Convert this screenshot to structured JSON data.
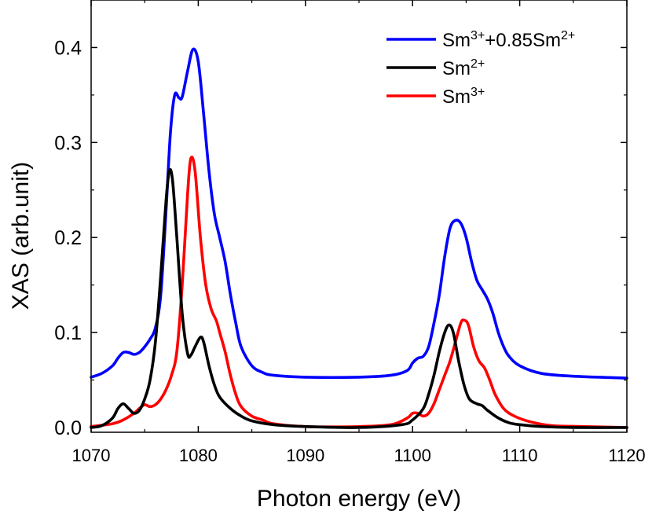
{
  "chart_data": {
    "type": "line",
    "xlabel": "Photon energy (eV)",
    "ylabel": "XAS (arb.unit)",
    "xlim": [
      1070,
      1120
    ],
    "ylim": [
      -0.005,
      0.45
    ],
    "xticks": [
      1070,
      1080,
      1090,
      1100,
      1110,
      1120
    ],
    "xtick_labels": [
      "1070",
      "1080",
      "1090",
      "1100",
      "1110",
      "1120"
    ],
    "yticks": [
      0.0,
      0.1,
      0.2,
      0.3,
      0.4
    ],
    "ytick_labels": [
      "0.0",
      "0.1",
      "0.2",
      "0.3",
      "0.4"
    ],
    "grid": false,
    "legend_position": "top-right",
    "series": [
      {
        "name": "Sm3++0.85Sm2+",
        "legend": {
          "base1": "Sm",
          "sup1": "3+",
          "mid": "+0.85Sm",
          "sup2": "2+"
        },
        "color": "#0000ff",
        "points": [
          [
            1070,
            0.053
          ],
          [
            1071,
            0.057
          ],
          [
            1072,
            0.065
          ],
          [
            1072.5,
            0.073
          ],
          [
            1073,
            0.079
          ],
          [
            1073.5,
            0.079
          ],
          [
            1074,
            0.077
          ],
          [
            1074.5,
            0.079
          ],
          [
            1075,
            0.085
          ],
          [
            1075.5,
            0.093
          ],
          [
            1076,
            0.105
          ],
          [
            1076.5,
            0.14
          ],
          [
            1077,
            0.23
          ],
          [
            1077.4,
            0.31
          ],
          [
            1077.8,
            0.35
          ],
          [
            1078.2,
            0.347
          ],
          [
            1078.5,
            0.348
          ],
          [
            1079,
            0.375
          ],
          [
            1079.5,
            0.398
          ],
          [
            1080,
            0.385
          ],
          [
            1080.5,
            0.33
          ],
          [
            1081,
            0.27
          ],
          [
            1081.5,
            0.225
          ],
          [
            1082,
            0.2
          ],
          [
            1082.5,
            0.175
          ],
          [
            1083,
            0.14
          ],
          [
            1083.5,
            0.11
          ],
          [
            1084,
            0.085
          ],
          [
            1085,
            0.065
          ],
          [
            1086,
            0.058
          ],
          [
            1087,
            0.055
          ],
          [
            1090,
            0.053
          ],
          [
            1095,
            0.053
          ],
          [
            1098,
            0.055
          ],
          [
            1099.5,
            0.06
          ],
          [
            1100,
            0.068
          ],
          [
            1100.5,
            0.073
          ],
          [
            1101,
            0.075
          ],
          [
            1101.5,
            0.085
          ],
          [
            1102,
            0.11
          ],
          [
            1102.5,
            0.14
          ],
          [
            1103,
            0.18
          ],
          [
            1103.5,
            0.21
          ],
          [
            1104,
            0.218
          ],
          [
            1104.5,
            0.215
          ],
          [
            1105,
            0.2
          ],
          [
            1105.5,
            0.175
          ],
          [
            1106,
            0.155
          ],
          [
            1106.5,
            0.145
          ],
          [
            1107,
            0.135
          ],
          [
            1107.5,
            0.12
          ],
          [
            1108,
            0.1
          ],
          [
            1108.5,
            0.085
          ],
          [
            1109,
            0.075
          ],
          [
            1110,
            0.065
          ],
          [
            1112,
            0.057
          ],
          [
            1115,
            0.054
          ],
          [
            1120,
            0.052
          ]
        ]
      },
      {
        "name": "Sm2+",
        "legend": {
          "base1": "Sm",
          "sup1": "2+",
          "mid": "",
          "sup2": ""
        },
        "color": "#000000",
        "points": [
          [
            1070,
            0.0
          ],
          [
            1071,
            0.002
          ],
          [
            1072,
            0.01
          ],
          [
            1072.5,
            0.02
          ],
          [
            1073,
            0.025
          ],
          [
            1073.5,
            0.02
          ],
          [
            1074,
            0.015
          ],
          [
            1074.5,
            0.018
          ],
          [
            1075,
            0.03
          ],
          [
            1075.5,
            0.05
          ],
          [
            1076,
            0.09
          ],
          [
            1076.5,
            0.16
          ],
          [
            1077,
            0.24
          ],
          [
            1077.3,
            0.27
          ],
          [
            1077.6,
            0.26
          ],
          [
            1078,
            0.2
          ],
          [
            1078.5,
            0.12
          ],
          [
            1079,
            0.078
          ],
          [
            1079.3,
            0.076
          ],
          [
            1079.7,
            0.085
          ],
          [
            1080.2,
            0.095
          ],
          [
            1080.5,
            0.09
          ],
          [
            1081,
            0.065
          ],
          [
            1081.5,
            0.045
          ],
          [
            1082,
            0.032
          ],
          [
            1083,
            0.02
          ],
          [
            1084,
            0.012
          ],
          [
            1085,
            0.007
          ],
          [
            1087,
            0.003
          ],
          [
            1090,
            0.001
          ],
          [
            1095,
            0.0
          ],
          [
            1099,
            0.003
          ],
          [
            1100,
            0.008
          ],
          [
            1101,
            0.02
          ],
          [
            1101.5,
            0.035
          ],
          [
            1102,
            0.055
          ],
          [
            1102.5,
            0.08
          ],
          [
            1103,
            0.1
          ],
          [
            1103.4,
            0.108
          ],
          [
            1103.8,
            0.1
          ],
          [
            1104.3,
            0.07
          ],
          [
            1104.8,
            0.045
          ],
          [
            1105.3,
            0.03
          ],
          [
            1106,
            0.025
          ],
          [
            1106.5,
            0.023
          ],
          [
            1107,
            0.018
          ],
          [
            1108,
            0.01
          ],
          [
            1109,
            0.005
          ],
          [
            1110,
            0.003
          ],
          [
            1112,
            0.001
          ],
          [
            1115,
            0.0
          ],
          [
            1120,
            0.0
          ]
        ]
      },
      {
        "name": "Sm3+",
        "legend": {
          "base1": "Sm",
          "sup1": "3+",
          "mid": "",
          "sup2": ""
        },
        "color": "#ff0000",
        "points": [
          [
            1070,
            0.001
          ],
          [
            1072,
            0.004
          ],
          [
            1073,
            0.008
          ],
          [
            1074,
            0.015
          ],
          [
            1074.5,
            0.02
          ],
          [
            1075,
            0.024
          ],
          [
            1075.5,
            0.022
          ],
          [
            1076,
            0.024
          ],
          [
            1076.5,
            0.03
          ],
          [
            1077,
            0.04
          ],
          [
            1077.5,
            0.055
          ],
          [
            1078,
            0.08
          ],
          [
            1078.5,
            0.15
          ],
          [
            1079,
            0.245
          ],
          [
            1079.3,
            0.283
          ],
          [
            1079.7,
            0.27
          ],
          [
            1080.2,
            0.2
          ],
          [
            1080.7,
            0.15
          ],
          [
            1081.2,
            0.125
          ],
          [
            1081.7,
            0.112
          ],
          [
            1082,
            0.1
          ],
          [
            1082.5,
            0.08
          ],
          [
            1083,
            0.055
          ],
          [
            1083.5,
            0.035
          ],
          [
            1084,
            0.022
          ],
          [
            1085,
            0.012
          ],
          [
            1086,
            0.008
          ],
          [
            1087,
            0.004
          ],
          [
            1090,
            0.001
          ],
          [
            1095,
            0.001
          ],
          [
            1098,
            0.003
          ],
          [
            1099.5,
            0.01
          ],
          [
            1100,
            0.015
          ],
          [
            1100.5,
            0.015
          ],
          [
            1101,
            0.012
          ],
          [
            1101.5,
            0.015
          ],
          [
            1102,
            0.025
          ],
          [
            1102.5,
            0.04
          ],
          [
            1103,
            0.055
          ],
          [
            1103.5,
            0.07
          ],
          [
            1104,
            0.09
          ],
          [
            1104.5,
            0.11
          ],
          [
            1104.8,
            0.113
          ],
          [
            1105.2,
            0.108
          ],
          [
            1105.7,
            0.085
          ],
          [
            1106.2,
            0.07
          ],
          [
            1106.7,
            0.063
          ],
          [
            1107.2,
            0.05
          ],
          [
            1107.7,
            0.035
          ],
          [
            1108.5,
            0.02
          ],
          [
            1109.5,
            0.012
          ],
          [
            1111,
            0.006
          ],
          [
            1113,
            0.002
          ],
          [
            1116,
            0.001
          ],
          [
            1120,
            0.0
          ]
        ]
      }
    ]
  }
}
